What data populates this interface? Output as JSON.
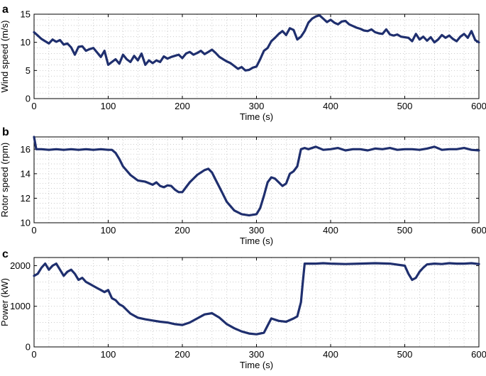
{
  "chart_data": [
    {
      "type": "line",
      "panel_label": "a",
      "xlabel": "Time (s)",
      "ylabel": "Wind speed (m/s)",
      "xlim": [
        0,
        600
      ],
      "ylim": [
        0,
        15
      ],
      "xticks": [
        0,
        100,
        200,
        300,
        400,
        500,
        600
      ],
      "yticks": [
        0,
        5,
        10,
        15
      ],
      "grid": true,
      "series": [
        {
          "x": [
            0,
            5,
            10,
            15,
            20,
            25,
            30,
            35,
            40,
            45,
            50,
            55,
            60,
            65,
            70,
            75,
            80,
            85,
            90,
            95,
            100,
            105,
            110,
            115,
            120,
            125,
            130,
            135,
            140,
            145,
            150,
            155,
            160,
            165,
            170,
            175,
            180,
            185,
            190,
            195,
            200,
            205,
            210,
            215,
            220,
            225,
            230,
            235,
            240,
            245,
            250,
            255,
            260,
            265,
            270,
            275,
            280,
            285,
            290,
            295,
            300,
            305,
            310,
            315,
            320,
            325,
            330,
            335,
            340,
            345,
            350,
            355,
            360,
            365,
            370,
            375,
            380,
            385,
            390,
            395,
            400,
            405,
            410,
            415,
            420,
            425,
            430,
            435,
            440,
            445,
            450,
            455,
            460,
            465,
            470,
            475,
            480,
            485,
            490,
            495,
            500,
            505,
            510,
            515,
            520,
            525,
            530,
            535,
            540,
            545,
            550,
            555,
            560,
            565,
            570,
            575,
            580,
            585,
            590,
            595,
            600
          ],
          "values": [
            11.8,
            11.2,
            10.6,
            10.2,
            9.8,
            10.5,
            10.1,
            10.4,
            9.6,
            9.8,
            9.1,
            7.8,
            9.2,
            9.3,
            8.5,
            8.8,
            9.0,
            8.2,
            7.4,
            8.5,
            6.0,
            6.5,
            7.0,
            6.2,
            7.8,
            7.0,
            6.5,
            7.6,
            6.8,
            8.0,
            6.0,
            6.8,
            6.3,
            6.8,
            6.5,
            7.5,
            7.1,
            7.4,
            7.6,
            7.8,
            7.2,
            8.0,
            8.3,
            7.8,
            8.1,
            8.5,
            7.9,
            8.3,
            8.7,
            8.1,
            7.4,
            7.0,
            6.6,
            6.3,
            5.8,
            5.3,
            5.6,
            5.0,
            5.1,
            5.5,
            5.7,
            7.0,
            8.5,
            9.0,
            10.2,
            10.8,
            11.5,
            12.0,
            11.3,
            12.5,
            12.2,
            10.5,
            11.0,
            12.0,
            13.5,
            14.2,
            14.6,
            14.8,
            14.2,
            13.6,
            14.0,
            13.5,
            13.2,
            13.7,
            13.8,
            13.2,
            12.9,
            12.6,
            12.4,
            12.1,
            12.0,
            12.3,
            11.8,
            11.6,
            11.5,
            12.3,
            11.4,
            11.2,
            11.4,
            11.0,
            10.9,
            10.8,
            10.2,
            11.5,
            10.5,
            11.0,
            10.3,
            10.9,
            10.0,
            10.5,
            11.3,
            10.8,
            11.2,
            10.6,
            10.2,
            11.0,
            11.5,
            10.8,
            12.0,
            10.4,
            10.0
          ]
        }
      ]
    },
    {
      "type": "line",
      "panel_label": "b",
      "xlabel": "Time (s)",
      "ylabel": "Rotor speed (rpm)",
      "xlim": [
        0,
        600
      ],
      "ylim": [
        10,
        17
      ],
      "xticks": [
        0,
        100,
        200,
        300,
        400,
        500,
        600
      ],
      "yticks": [
        10,
        12,
        14,
        16
      ],
      "grid": true,
      "series": [
        {
          "x": [
            0,
            3,
            6,
            10,
            20,
            30,
            40,
            50,
            60,
            70,
            80,
            90,
            100,
            105,
            110,
            115,
            120,
            130,
            140,
            150,
            160,
            165,
            170,
            175,
            180,
            185,
            190,
            195,
            200,
            205,
            210,
            220,
            230,
            235,
            240,
            245,
            250,
            255,
            260,
            270,
            280,
            290,
            300,
            305,
            310,
            315,
            320,
            325,
            330,
            335,
            340,
            345,
            350,
            355,
            360,
            365,
            370,
            380,
            390,
            400,
            410,
            420,
            430,
            440,
            450,
            460,
            470,
            480,
            490,
            500,
            510,
            520,
            530,
            540,
            550,
            560,
            570,
            580,
            590,
            600
          ],
          "values": [
            17.0,
            16.0,
            16.0,
            16.0,
            15.95,
            16.0,
            15.95,
            16.0,
            15.95,
            16.0,
            15.95,
            16.0,
            15.95,
            15.95,
            15.7,
            15.2,
            14.6,
            13.9,
            13.45,
            13.35,
            13.1,
            13.3,
            13.0,
            12.9,
            13.05,
            13.0,
            12.7,
            12.5,
            12.5,
            12.9,
            13.3,
            13.9,
            14.3,
            14.4,
            14.1,
            13.5,
            12.9,
            12.3,
            11.7,
            11.0,
            10.7,
            10.6,
            10.7,
            11.2,
            12.2,
            13.3,
            13.7,
            13.6,
            13.3,
            13.0,
            13.2,
            14.0,
            14.2,
            14.6,
            16.0,
            16.1,
            16.0,
            16.2,
            15.95,
            16.0,
            16.1,
            15.9,
            16.0,
            16.0,
            15.9,
            16.05,
            16.0,
            16.1,
            15.95,
            16.0,
            16.0,
            15.95,
            16.05,
            16.2,
            15.95,
            16.0,
            16.0,
            16.1,
            15.95,
            15.9
          ]
        }
      ]
    },
    {
      "type": "line",
      "panel_label": "c",
      "xlabel": "Time (s)",
      "ylabel": "Power (kW)",
      "xlim": [
        0,
        600
      ],
      "ylim": [
        0,
        2200
      ],
      "xticks": [
        0,
        100,
        200,
        300,
        400,
        500,
        600
      ],
      "yticks": [
        0,
        1000,
        2000
      ],
      "grid": true,
      "series": [
        {
          "x": [
            0,
            5,
            10,
            15,
            20,
            25,
            30,
            35,
            40,
            45,
            50,
            55,
            60,
            65,
            70,
            75,
            80,
            85,
            90,
            95,
            100,
            105,
            110,
            115,
            120,
            130,
            140,
            150,
            160,
            170,
            180,
            190,
            200,
            210,
            220,
            230,
            240,
            250,
            260,
            270,
            280,
            290,
            300,
            310,
            320,
            330,
            340,
            350,
            355,
            360,
            362,
            365,
            370,
            380,
            390,
            400,
            420,
            440,
            460,
            480,
            500,
            505,
            510,
            515,
            520,
            525,
            530,
            540,
            550,
            560,
            570,
            580,
            590,
            600
          ],
          "values": [
            1750,
            1800,
            1950,
            2050,
            1900,
            2000,
            2050,
            1900,
            1750,
            1850,
            1900,
            1800,
            1650,
            1700,
            1600,
            1550,
            1500,
            1450,
            1400,
            1350,
            1400,
            1200,
            1150,
            1050,
            1000,
            820,
            720,
            680,
            650,
            620,
            600,
            560,
            540,
            600,
            700,
            800,
            830,
            720,
            560,
            460,
            380,
            330,
            310,
            350,
            700,
            640,
            620,
            700,
            750,
            1100,
            1500,
            2050,
            2050,
            2050,
            2060,
            2050,
            2040,
            2050,
            2060,
            2050,
            2000,
            1800,
            1650,
            1700,
            1850,
            1950,
            2030,
            2050,
            2040,
            2060,
            2050,
            2050,
            2060,
            2040
          ]
        }
      ]
    }
  ]
}
